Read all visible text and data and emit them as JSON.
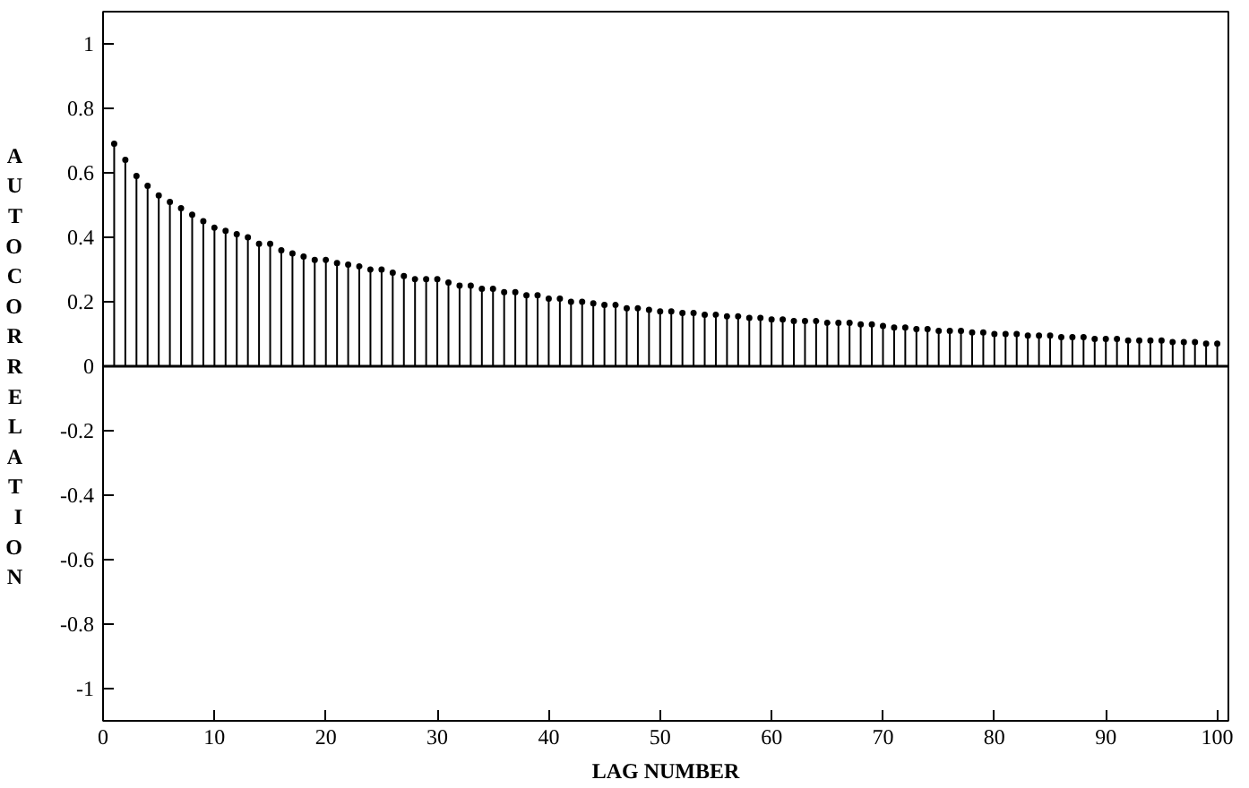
{
  "chart_data": {
    "type": "lollipop",
    "xlabel": "LAG NUMBER",
    "ylabel": "AUTOCORRELATION",
    "x": [
      1,
      2,
      3,
      4,
      5,
      6,
      7,
      8,
      9,
      10,
      11,
      12,
      13,
      14,
      15,
      16,
      17,
      18,
      19,
      20,
      21,
      22,
      23,
      24,
      25,
      26,
      27,
      28,
      29,
      30,
      31,
      32,
      33,
      34,
      35,
      36,
      37,
      38,
      39,
      40,
      41,
      42,
      43,
      44,
      45,
      46,
      47,
      48,
      49,
      50,
      51,
      52,
      53,
      54,
      55,
      56,
      57,
      58,
      59,
      60,
      61,
      62,
      63,
      64,
      65,
      66,
      67,
      68,
      69,
      70,
      71,
      72,
      73,
      74,
      75,
      76,
      77,
      78,
      79,
      80,
      81,
      82,
      83,
      84,
      85,
      86,
      87,
      88,
      89,
      90,
      91,
      92,
      93,
      94,
      95,
      96,
      97,
      98,
      99,
      100
    ],
    "values": [
      0.69,
      0.64,
      0.59,
      0.56,
      0.53,
      0.51,
      0.49,
      0.47,
      0.45,
      0.43,
      0.42,
      0.41,
      0.4,
      0.38,
      0.38,
      0.36,
      0.35,
      0.34,
      0.33,
      0.33,
      0.32,
      0.315,
      0.31,
      0.3,
      0.3,
      0.29,
      0.28,
      0.27,
      0.27,
      0.27,
      0.26,
      0.25,
      0.25,
      0.24,
      0.24,
      0.23,
      0.23,
      0.22,
      0.22,
      0.21,
      0.21,
      0.2,
      0.2,
      0.195,
      0.19,
      0.19,
      0.18,
      0.18,
      0.175,
      0.17,
      0.17,
      0.165,
      0.165,
      0.16,
      0.16,
      0.155,
      0.155,
      0.15,
      0.15,
      0.145,
      0.145,
      0.14,
      0.14,
      0.14,
      0.135,
      0.135,
      0.135,
      0.13,
      0.13,
      0.125,
      0.12,
      0.12,
      0.115,
      0.115,
      0.11,
      0.11,
      0.11,
      0.105,
      0.105,
      0.1,
      0.1,
      0.1,
      0.095,
      0.095,
      0.095,
      0.09,
      0.09,
      0.09,
      0.085,
      0.085,
      0.085,
      0.08,
      0.08,
      0.08,
      0.08,
      0.075,
      0.075,
      0.075,
      0.07,
      0.07
    ],
    "color": "#000000",
    "marker": "circle",
    "xlim": [
      0,
      101
    ],
    "xticks": [
      0,
      10,
      20,
      30,
      40,
      50,
      60,
      70,
      80,
      90,
      100
    ],
    "ylim": [
      -1.1,
      1.1
    ],
    "yticks": [
      -1,
      -0.8,
      -0.6,
      -0.4,
      -0.2,
      0,
      0.2,
      0.4,
      0.6,
      0.8,
      1
    ],
    "ref_lines": [
      {
        "axis": "y",
        "value": 0,
        "color": "#000000"
      }
    ],
    "grid": false
  }
}
